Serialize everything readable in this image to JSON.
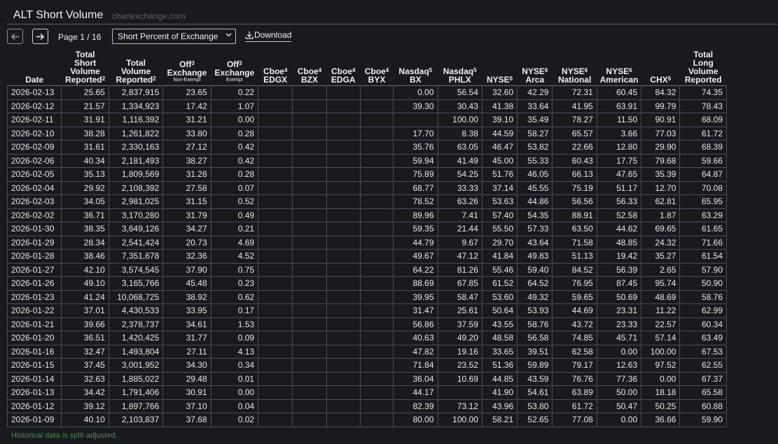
{
  "header": {
    "title": "ALT Short Volume",
    "subtitle": "chartexchange.com"
  },
  "toolbar": {
    "prev_icon": "arrow-left-icon",
    "next_icon": "arrow-right-icon",
    "page_info": "Page 1 / 16",
    "select_value": "Short Percent of Exchange",
    "download_label": "Download",
    "download_icon": "download-icon"
  },
  "table": {
    "columns": [
      {
        "lines": [
          "Date"
        ],
        "sup": "",
        "sub": ""
      },
      {
        "lines": [
          "Total",
          "Short",
          "Volume",
          "Reported"
        ],
        "sup": "2",
        "sub": ""
      },
      {
        "lines": [
          "Total",
          "Volume",
          "Reported"
        ],
        "sup": "2",
        "sub": ""
      },
      {
        "lines": [
          "Off",
          "Exchange"
        ],
        "sup": "3",
        "sub": "Non-Exempt"
      },
      {
        "lines": [
          "Off",
          "Exchange"
        ],
        "sup": "3",
        "sub": "Exempt"
      },
      {
        "lines": [
          "Cboe",
          "EDGX"
        ],
        "sup": "4",
        "sub": ""
      },
      {
        "lines": [
          "Cboe",
          "BZX"
        ],
        "sup": "4",
        "sub": ""
      },
      {
        "lines": [
          "Cboe",
          "EDGA"
        ],
        "sup": "4",
        "sub": ""
      },
      {
        "lines": [
          "Cboe",
          "BYX"
        ],
        "sup": "4",
        "sub": ""
      },
      {
        "lines": [
          "Nasdaq",
          "BX"
        ],
        "sup": "5",
        "sub": ""
      },
      {
        "lines": [
          "Nasdaq",
          "PHLX"
        ],
        "sup": "5",
        "sub": ""
      },
      {
        "lines": [
          "NYSE"
        ],
        "sup": "6",
        "sub": ""
      },
      {
        "lines": [
          "NYSE",
          "Arca"
        ],
        "sup": "6",
        "sub": ""
      },
      {
        "lines": [
          "NYSE",
          "National"
        ],
        "sup": "6",
        "sub": ""
      },
      {
        "lines": [
          "NYSE",
          "American"
        ],
        "sup": "6",
        "sub": ""
      },
      {
        "lines": [
          "CHX"
        ],
        "sup": "6",
        "sub": ""
      },
      {
        "lines": [
          "Total",
          "Long",
          "Volume",
          "Reported"
        ],
        "sup": "",
        "sub": ""
      }
    ],
    "rows": [
      [
        "2026-02-13",
        "25.65",
        "2,837,915",
        "23.65",
        "0.22",
        "",
        "",
        "",
        "",
        "0.00",
        "56.54",
        "32.60",
        "42.29",
        "72.31",
        "60.45",
        "84.32",
        "74.35"
      ],
      [
        "2026-02-12",
        "21.57",
        "1,334,923",
        "17.42",
        "1.07",
        "",
        "",
        "",
        "",
        "39.30",
        "30.43",
        "41.38",
        "33.64",
        "41.95",
        "63.91",
        "99.79",
        "78.43"
      ],
      [
        "2026-02-11",
        "31.91",
        "1,116,392",
        "31.21",
        "0.00",
        "",
        "",
        "",
        "",
        "",
        "100.00",
        "39.10",
        "35.49",
        "78.27",
        "11.50",
        "90.91",
        "68.09"
      ],
      [
        "2026-02-10",
        "38.28",
        "1,261,822",
        "33.80",
        "0.28",
        "",
        "",
        "",
        "",
        "17.70",
        "8.38",
        "44.59",
        "58.27",
        "65.57",
        "3.66",
        "77.03",
        "61.72"
      ],
      [
        "2026-02-09",
        "31.61",
        "2,330,163",
        "27.12",
        "0.42",
        "",
        "",
        "",
        "",
        "35.76",
        "63.05",
        "46.47",
        "53.82",
        "22.66",
        "12.80",
        "29.90",
        "68.39"
      ],
      [
        "2026-02-06",
        "40.34",
        "2,181,493",
        "38.27",
        "0.42",
        "",
        "",
        "",
        "",
        "59.94",
        "41.49",
        "45.00",
        "55.33",
        "60.43",
        "17.75",
        "79.68",
        "59.66"
      ],
      [
        "2026-02-05",
        "35.13",
        "1,809,569",
        "31.28",
        "0.28",
        "",
        "",
        "",
        "",
        "75.89",
        "54.25",
        "51.76",
        "46.05",
        "66.13",
        "47.65",
        "35.39",
        "64.87"
      ],
      [
        "2026-02-04",
        "29.92",
        "2,108,392",
        "27.58",
        "0.07",
        "",
        "",
        "",
        "",
        "68.77",
        "33.33",
        "37.14",
        "45.55",
        "75.19",
        "51.17",
        "12.70",
        "70.08"
      ],
      [
        "2026-02-03",
        "34.05",
        "2,981,025",
        "31.15",
        "0.52",
        "",
        "",
        "",
        "",
        "78.52",
        "63.26",
        "53.63",
        "44.86",
        "56.56",
        "56.33",
        "62.81",
        "65.95"
      ],
      [
        "2026-02-02",
        "36.71",
        "3,170,280",
        "31.79",
        "0.49",
        "",
        "",
        "",
        "",
        "89.96",
        "7.41",
        "57.40",
        "54.35",
        "88.91",
        "52.58",
        "1.87",
        "63.29"
      ],
      [
        "2026-01-30",
        "38.35",
        "3,649,126",
        "34.27",
        "0.21",
        "",
        "",
        "",
        "",
        "59.35",
        "21.44",
        "55.50",
        "57.33",
        "63.50",
        "44.62",
        "69.65",
        "61.65"
      ],
      [
        "2026-01-29",
        "28.34",
        "2,541,424",
        "20.73",
        "4.69",
        "",
        "",
        "",
        "",
        "44.79",
        "9.67",
        "29.70",
        "43.64",
        "71.58",
        "48.85",
        "24.32",
        "71.66"
      ],
      [
        "2026-01-28",
        "38.46",
        "7,351,678",
        "32.36",
        "4.52",
        "",
        "",
        "",
        "",
        "49.67",
        "47.12",
        "41.84",
        "49.83",
        "51.13",
        "19.42",
        "35.27",
        "61.54"
      ],
      [
        "2026-01-27",
        "42.10",
        "3,574,545",
        "37.90",
        "0.75",
        "",
        "",
        "",
        "",
        "64.22",
        "81.26",
        "55.46",
        "59.40",
        "84.52",
        "56.39",
        "2.65",
        "57.90"
      ],
      [
        "2026-01-26",
        "49.10",
        "3,165,766",
        "45.48",
        "0.23",
        "",
        "",
        "",
        "",
        "88.69",
        "67.85",
        "61.52",
        "64.52",
        "76.95",
        "87.45",
        "95.74",
        "50.90"
      ],
      [
        "2026-01-23",
        "41.24",
        "10,068,725",
        "38.92",
        "0.62",
        "",
        "",
        "",
        "",
        "39.95",
        "58.47",
        "53.60",
        "49.32",
        "59.65",
        "50.69",
        "48.69",
        "58.76"
      ],
      [
        "2026-01-22",
        "37.01",
        "4,430,533",
        "33.95",
        "0.17",
        "",
        "",
        "",
        "",
        "31.47",
        "25.61",
        "50.64",
        "53.93",
        "44.69",
        "23.31",
        "11.22",
        "62.99"
      ],
      [
        "2026-01-21",
        "39.66",
        "2,378,737",
        "34.61",
        "1.53",
        "",
        "",
        "",
        "",
        "56.86",
        "37.59",
        "43.55",
        "58.76",
        "43.72",
        "23.33",
        "22.57",
        "60.34"
      ],
      [
        "2026-01-20",
        "36.51",
        "1,420,425",
        "31.77",
        "0.09",
        "",
        "",
        "",
        "",
        "40.63",
        "49.20",
        "48.58",
        "56.58",
        "74.85",
        "45.71",
        "57.14",
        "63.49"
      ],
      [
        "2026-01-16",
        "32.47",
        "1,493,804",
        "27.11",
        "4.13",
        "",
        "",
        "",
        "",
        "47.82",
        "19.16",
        "33.65",
        "39.51",
        "62.58",
        "0.00",
        "100.00",
        "67.53"
      ],
      [
        "2026-01-15",
        "37.45",
        "3,001,952",
        "34.30",
        "0.34",
        "",
        "",
        "",
        "",
        "71.84",
        "23.52",
        "51.36",
        "59.89",
        "79.17",
        "12.63",
        "97.52",
        "62.55"
      ],
      [
        "2026-01-14",
        "32.63",
        "1,885,022",
        "29.48",
        "0.01",
        "",
        "",
        "",
        "",
        "36.04",
        "10.69",
        "44.85",
        "43.59",
        "76.76",
        "77.36",
        "0.00",
        "67.37"
      ],
      [
        "2026-01-13",
        "34.42",
        "1,791,406",
        "30.91",
        "0.00",
        "",
        "",
        "",
        "",
        "44.17",
        "",
        "41.90",
        "54.61",
        "63.89",
        "50.00",
        "18.18",
        "65.58"
      ],
      [
        "2026-01-12",
        "39.12",
        "1,897,766",
        "37.10",
        "0.04",
        "",
        "",
        "",
        "",
        "82.39",
        "73.12",
        "43.96",
        "53.80",
        "61.72",
        "50.47",
        "50.25",
        "60.88"
      ],
      [
        "2026-01-09",
        "40.10",
        "2,103,837",
        "37.68",
        "0.02",
        "",
        "",
        "",
        "",
        "80.00",
        "100.00",
        "58.21",
        "52.65",
        "77.08",
        "0.00",
        "36.66",
        "59.90"
      ]
    ]
  },
  "footnote": "Historical data is split-adjusted.",
  "colors": {
    "background": "#181a1e",
    "text": "#e8e8e8",
    "border": "#4a4e55",
    "footnote": "#4a8a4a"
  }
}
